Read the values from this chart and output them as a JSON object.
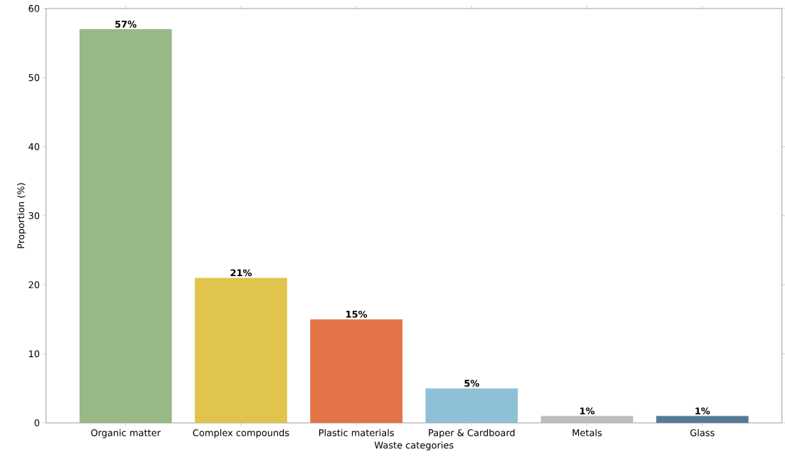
{
  "chart_data": {
    "type": "bar",
    "xlabel": "Waste categories",
    "ylabel": "Proportion (%)",
    "categories": [
      "Organic matter",
      "Complex compounds",
      "Plastic materials",
      "Paper & Cardboard",
      "Metals",
      "Glass"
    ],
    "values": [
      57,
      21,
      15,
      5,
      1,
      1
    ],
    "colors": [
      "#98b888",
      "#e0c44e",
      "#e27448",
      "#8fc1d6",
      "#bdbdbd",
      "#557a93"
    ],
    "value_labels": [
      "57%",
      "21%",
      "15%",
      "5%",
      "1%",
      "1%"
    ],
    "ylim": [
      0,
      60
    ],
    "yticks": [
      0,
      10,
      20,
      30,
      40,
      50,
      60
    ],
    "grid": false
  }
}
